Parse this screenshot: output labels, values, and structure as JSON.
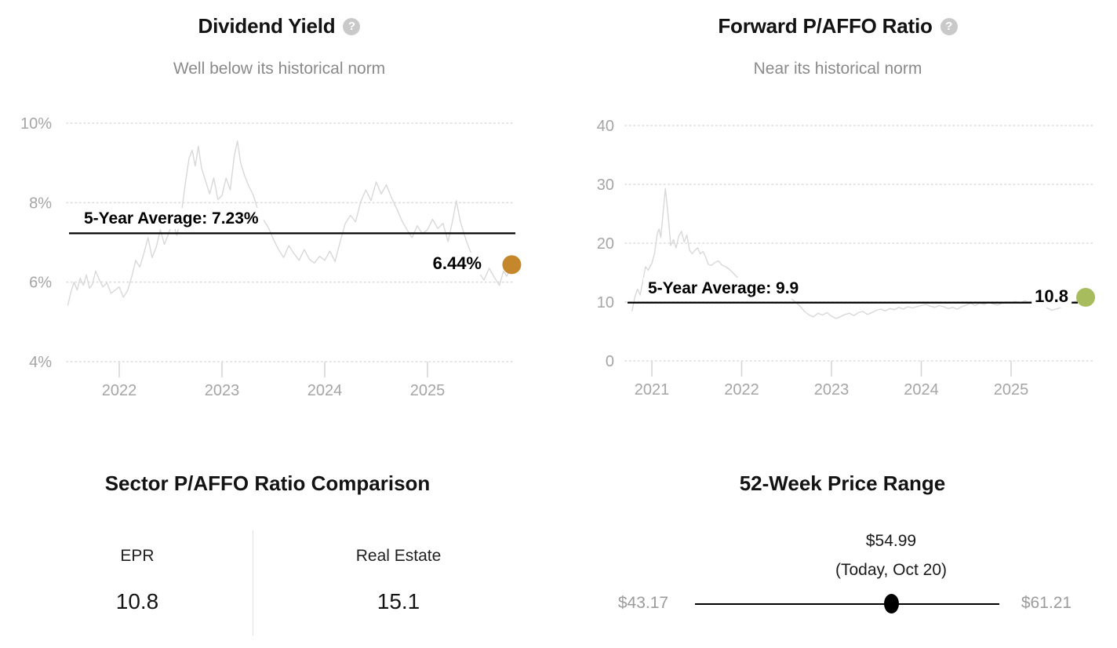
{
  "icons": {
    "help_glyph": "?"
  },
  "chart_data": [
    {
      "type": "line",
      "title": "Dividend Yield",
      "subtitle": "Well below its historical norm",
      "unit": "%",
      "xlim": [
        2021.5,
        2025.85
      ],
      "ylim": [
        4,
        10
      ],
      "grid": "dotted-horizontal",
      "legend": "none",
      "line_color": "#d8d8d8",
      "y_ticks": [
        {
          "v": 10,
          "label": "10%"
        },
        {
          "v": 8,
          "label": "8%"
        },
        {
          "v": 6,
          "label": "6%"
        },
        {
          "v": 4,
          "label": "4%"
        }
      ],
      "x_ticks": [
        {
          "v": 2022,
          "label": "2022"
        },
        {
          "v": 2023,
          "label": "2023"
        },
        {
          "v": 2024,
          "label": "2024"
        },
        {
          "v": 2025,
          "label": "2025"
        }
      ],
      "average": {
        "value": 7.23,
        "label": "5-Year Average: 7.23%"
      },
      "current": {
        "value": 6.44,
        "x": 2025.82,
        "label": "6.44%",
        "dot_color": "#c5872b"
      },
      "series": [
        {
          "name": "Dividend Yield",
          "points": [
            [
              2021.5,
              5.42
            ],
            [
              2021.53,
              5.75
            ],
            [
              2021.56,
              6.0
            ],
            [
              2021.59,
              5.8
            ],
            [
              2021.62,
              6.1
            ],
            [
              2021.65,
              5.92
            ],
            [
              2021.68,
              6.18
            ],
            [
              2021.71,
              5.85
            ],
            [
              2021.74,
              5.95
            ],
            [
              2021.77,
              6.28
            ],
            [
              2021.8,
              6.1
            ],
            [
              2021.84,
              5.88
            ],
            [
              2021.88,
              5.98
            ],
            [
              2021.92,
              5.72
            ],
            [
              2021.96,
              5.8
            ],
            [
              2022.0,
              5.88
            ],
            [
              2022.04,
              5.62
            ],
            [
              2022.08,
              5.78
            ],
            [
              2022.12,
              6.12
            ],
            [
              2022.16,
              6.55
            ],
            [
              2022.2,
              6.38
            ],
            [
              2022.24,
              6.72
            ],
            [
              2022.28,
              7.12
            ],
            [
              2022.32,
              6.62
            ],
            [
              2022.36,
              6.88
            ],
            [
              2022.4,
              7.32
            ],
            [
              2022.44,
              6.95
            ],
            [
              2022.48,
              7.22
            ],
            [
              2022.52,
              7.52
            ],
            [
              2022.56,
              7.18
            ],
            [
              2022.6,
              7.62
            ],
            [
              2022.64,
              8.42
            ],
            [
              2022.68,
              9.12
            ],
            [
              2022.71,
              9.32
            ],
            [
              2022.74,
              8.92
            ],
            [
              2022.77,
              9.42
            ],
            [
              2022.8,
              8.88
            ],
            [
              2022.84,
              8.55
            ],
            [
              2022.88,
              8.22
            ],
            [
              2022.92,
              8.62
            ],
            [
              2022.96,
              8.08
            ],
            [
              2023.0,
              8.18
            ],
            [
              2023.04,
              8.62
            ],
            [
              2023.08,
              8.32
            ],
            [
              2023.12,
              9.18
            ],
            [
              2023.15,
              9.55
            ],
            [
              2023.18,
              9.02
            ],
            [
              2023.22,
              8.68
            ],
            [
              2023.26,
              8.42
            ],
            [
              2023.3,
              8.22
            ],
            [
              2023.35,
              7.82
            ],
            [
              2023.4,
              7.58
            ],
            [
              2023.45,
              7.38
            ],
            [
              2023.5,
              7.08
            ],
            [
              2023.55,
              6.82
            ],
            [
              2023.6,
              6.62
            ],
            [
              2023.65,
              6.92
            ],
            [
              2023.7,
              6.72
            ],
            [
              2023.75,
              6.55
            ],
            [
              2023.8,
              6.82
            ],
            [
              2023.85,
              6.58
            ],
            [
              2023.9,
              6.48
            ],
            [
              2023.95,
              6.65
            ],
            [
              2024.0,
              6.55
            ],
            [
              2024.05,
              6.78
            ],
            [
              2024.1,
              6.52
            ],
            [
              2024.15,
              7.02
            ],
            [
              2024.2,
              7.48
            ],
            [
              2024.25,
              7.68
            ],
            [
              2024.3,
              7.52
            ],
            [
              2024.35,
              8.02
            ],
            [
              2024.4,
              8.32
            ],
            [
              2024.45,
              8.05
            ],
            [
              2024.5,
              8.52
            ],
            [
              2024.55,
              8.22
            ],
            [
              2024.6,
              8.45
            ],
            [
              2024.65,
              8.12
            ],
            [
              2024.7,
              7.85
            ],
            [
              2024.75,
              7.55
            ],
            [
              2024.8,
              7.32
            ],
            [
              2024.85,
              7.12
            ],
            [
              2024.9,
              7.42
            ],
            [
              2024.95,
              7.22
            ],
            [
              2025.0,
              7.32
            ],
            [
              2025.05,
              7.58
            ],
            [
              2025.1,
              7.35
            ],
            [
              2025.15,
              7.48
            ],
            [
              2025.2,
              7.02
            ],
            [
              2025.25,
              7.62
            ],
            [
              2025.28,
              8.05
            ],
            [
              2025.32,
              7.52
            ],
            [
              2025.38,
              7.02
            ],
            [
              2025.44,
              6.62
            ],
            [
              2025.5,
              6.25
            ],
            [
              2025.55,
              6.05
            ],
            [
              2025.6,
              6.35
            ],
            [
              2025.65,
              6.12
            ],
            [
              2025.7,
              5.92
            ],
            [
              2025.74,
              6.28
            ],
            [
              2025.77,
              6.15
            ],
            [
              2025.82,
              6.44
            ]
          ]
        }
      ]
    },
    {
      "type": "line",
      "title": "Forward P/AFFO Ratio",
      "subtitle": "Near its historical norm",
      "unit": "",
      "xlim": [
        2020.78,
        2025.85
      ],
      "ylim": [
        0,
        40
      ],
      "grid": "dotted-horizontal",
      "legend": "none",
      "line_color": "#d8d8d8",
      "y_ticks": [
        {
          "v": 40,
          "label": "40"
        },
        {
          "v": 30,
          "label": "30"
        },
        {
          "v": 20,
          "label": "20"
        },
        {
          "v": 10,
          "label": "10"
        },
        {
          "v": 0,
          "label": "0"
        }
      ],
      "x_ticks": [
        {
          "v": 2021,
          "label": "2021"
        },
        {
          "v": 2022,
          "label": "2022"
        },
        {
          "v": 2023,
          "label": "2023"
        },
        {
          "v": 2024,
          "label": "2024"
        },
        {
          "v": 2025,
          "label": "2025"
        }
      ],
      "average": {
        "value": 9.9,
        "label": "5-Year Average: 9.9"
      },
      "current": {
        "value": 10.8,
        "x": 2025.83,
        "label": "10.8",
        "dot_color": "#a7bd5d"
      },
      "series": [
        {
          "name": "Forward P/AFFO Ratio",
          "points": [
            [
              2020.78,
              8.5
            ],
            [
              2020.81,
              10.8
            ],
            [
              2020.84,
              12.2
            ],
            [
              2020.87,
              11.2
            ],
            [
              2020.9,
              13.6
            ],
            [
              2020.93,
              16.0
            ],
            [
              2020.96,
              15.4
            ],
            [
              2021.0,
              16.6
            ],
            [
              2021.03,
              18.2
            ],
            [
              2021.06,
              21.6
            ],
            [
              2021.08,
              22.4
            ],
            [
              2021.1,
              21.0
            ],
            [
              2021.12,
              24.2
            ],
            [
              2021.15,
              29.3
            ],
            [
              2021.17,
              26.4
            ],
            [
              2021.19,
              23.2
            ],
            [
              2021.21,
              19.6
            ],
            [
              2021.24,
              20.6
            ],
            [
              2021.27,
              19.2
            ],
            [
              2021.3,
              21.2
            ],
            [
              2021.33,
              22.0
            ],
            [
              2021.36,
              20.2
            ],
            [
              2021.39,
              21.4
            ],
            [
              2021.42,
              18.8
            ],
            [
              2021.45,
              18.2
            ],
            [
              2021.48,
              18.8
            ],
            [
              2021.51,
              19.2
            ],
            [
              2021.54,
              18.2
            ],
            [
              2021.57,
              18.6
            ],
            [
              2021.6,
              17.6
            ],
            [
              2021.63,
              16.4
            ],
            [
              2021.66,
              16.2
            ],
            [
              2021.7,
              16.7
            ],
            [
              2021.74,
              17.0
            ],
            [
              2021.78,
              16.3
            ],
            [
              2021.82,
              16.0
            ],
            [
              2021.86,
              15.6
            ],
            [
              2021.9,
              15.0
            ],
            [
              2021.95,
              14.2
            ],
            [
              2022.0,
              13.6
            ],
            [
              2022.05,
              13.2
            ],
            [
              2022.1,
              13.4
            ],
            [
              2022.15,
              12.9
            ],
            [
              2022.2,
              13.1
            ],
            [
              2022.25,
              12.6
            ],
            [
              2022.3,
              12.3
            ],
            [
              2022.35,
              12.6
            ],
            [
              2022.4,
              12.1
            ],
            [
              2022.45,
              11.6
            ],
            [
              2022.5,
              11.2
            ],
            [
              2022.55,
              10.6
            ],
            [
              2022.6,
              10.0
            ],
            [
              2022.65,
              9.3
            ],
            [
              2022.7,
              8.4
            ],
            [
              2022.75,
              7.8
            ],
            [
              2022.8,
              7.5
            ],
            [
              2022.85,
              8.1
            ],
            [
              2022.9,
              7.8
            ],
            [
              2022.95,
              8.2
            ],
            [
              2023.0,
              7.6
            ],
            [
              2023.05,
              7.2
            ],
            [
              2023.1,
              7.5
            ],
            [
              2023.15,
              7.9
            ],
            [
              2023.2,
              8.1
            ],
            [
              2023.25,
              7.7
            ],
            [
              2023.3,
              8.2
            ],
            [
              2023.35,
              8.4
            ],
            [
              2023.4,
              7.9
            ],
            [
              2023.45,
              8.2
            ],
            [
              2023.5,
              8.6
            ],
            [
              2023.55,
              8.8
            ],
            [
              2023.6,
              8.5
            ],
            [
              2023.65,
              8.9
            ],
            [
              2023.7,
              8.7
            ],
            [
              2023.75,
              9.1
            ],
            [
              2023.8,
              8.8
            ],
            [
              2023.85,
              9.2
            ],
            [
              2023.9,
              9.0
            ],
            [
              2023.95,
              9.2
            ],
            [
              2024.0,
              9.4
            ],
            [
              2024.05,
              9.6
            ],
            [
              2024.1,
              9.3
            ],
            [
              2024.15,
              9.1
            ],
            [
              2024.2,
              9.4
            ],
            [
              2024.25,
              9.2
            ],
            [
              2024.3,
              8.9
            ],
            [
              2024.35,
              9.1
            ],
            [
              2024.4,
              8.8
            ],
            [
              2024.45,
              9.2
            ],
            [
              2024.5,
              9.5
            ],
            [
              2024.55,
              9.8
            ],
            [
              2024.6,
              9.4
            ],
            [
              2024.65,
              9.8
            ],
            [
              2024.7,
              9.6
            ],
            [
              2024.75,
              10.0
            ],
            [
              2024.8,
              9.7
            ],
            [
              2024.85,
              9.5
            ],
            [
              2024.9,
              9.8
            ],
            [
              2024.95,
              10.0
            ],
            [
              2025.0,
              9.9
            ],
            [
              2025.05,
              10.1
            ],
            [
              2025.1,
              9.8
            ],
            [
              2025.15,
              10.2
            ],
            [
              2025.2,
              10.0
            ],
            [
              2025.25,
              10.3
            ],
            [
              2025.3,
              9.9
            ],
            [
              2025.38,
              9.2
            ],
            [
              2025.45,
              8.6
            ],
            [
              2025.52,
              8.9
            ],
            [
              2025.6,
              9.4
            ],
            [
              2025.68,
              9.9
            ],
            [
              2025.75,
              10.3
            ],
            [
              2025.83,
              10.8
            ]
          ]
        }
      ]
    },
    {
      "type": "table",
      "title": "Sector P/AFFO Ratio Comparison",
      "columns": [
        {
          "label": "EPR",
          "value": "10.8"
        },
        {
          "label": "Real Estate",
          "value": "15.1"
        }
      ]
    },
    {
      "type": "range",
      "title": "52-Week Price Range",
      "low": 43.17,
      "high": 61.21,
      "current": 54.99,
      "low_label": "$43.17",
      "high_label": "$61.21",
      "current_label": "$54.99",
      "current_sublabel": "(Today, Oct 20)",
      "marker_color": "#000000"
    }
  ]
}
